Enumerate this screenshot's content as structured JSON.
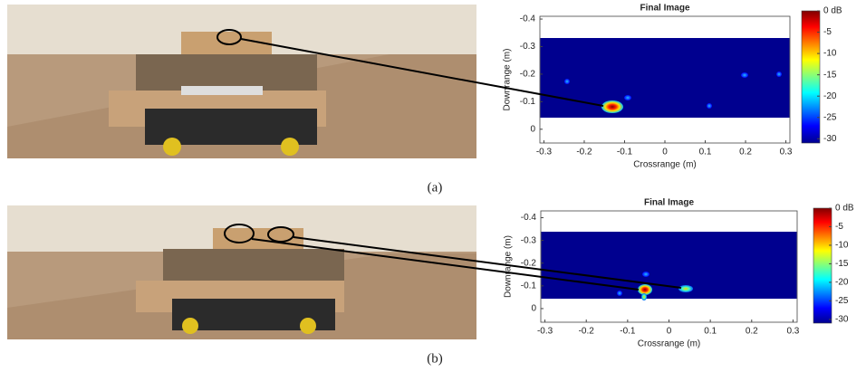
{
  "panels": [
    {
      "caption": "(a)",
      "heatmap": {
        "title": "Final Image",
        "xlabel": "Crossrange (m)",
        "ylabel": "Downrange (m)",
        "xlim": [
          -0.31,
          0.31
        ],
        "xticks": [
          -0.3,
          -0.2,
          -0.1,
          0,
          0.1,
          0.2,
          0.3
        ],
        "ylim": [
          -0.41,
          0.05
        ],
        "yticks": [
          -0.4,
          -0.3,
          -0.2,
          -0.1,
          0
        ],
        "clim": [
          -31,
          0
        ],
        "cticks": [
          {
            "value": 0,
            "label": "0 dB"
          },
          -5,
          -10,
          -15,
          -20,
          -25,
          -30
        ]
      }
    },
    {
      "caption": "(b)",
      "heatmap": {
        "title": "Final Image",
        "xlabel": "Crossrange (m)",
        "ylabel": "Downrange (m)",
        "xlim": [
          -0.31,
          0.31
        ],
        "xticks": [
          -0.3,
          -0.2,
          -0.1,
          0,
          0.1,
          0.2,
          0.3
        ],
        "ylim": [
          -0.43,
          0.06
        ],
        "yticks": [
          -0.4,
          -0.3,
          -0.2,
          -0.1,
          0
        ],
        "clim": [
          -31,
          0
        ],
        "cticks": [
          {
            "value": 0,
            "label": "0 dB"
          },
          -5,
          -10,
          -15,
          -20,
          -25,
          -30
        ]
      }
    }
  ]
}
